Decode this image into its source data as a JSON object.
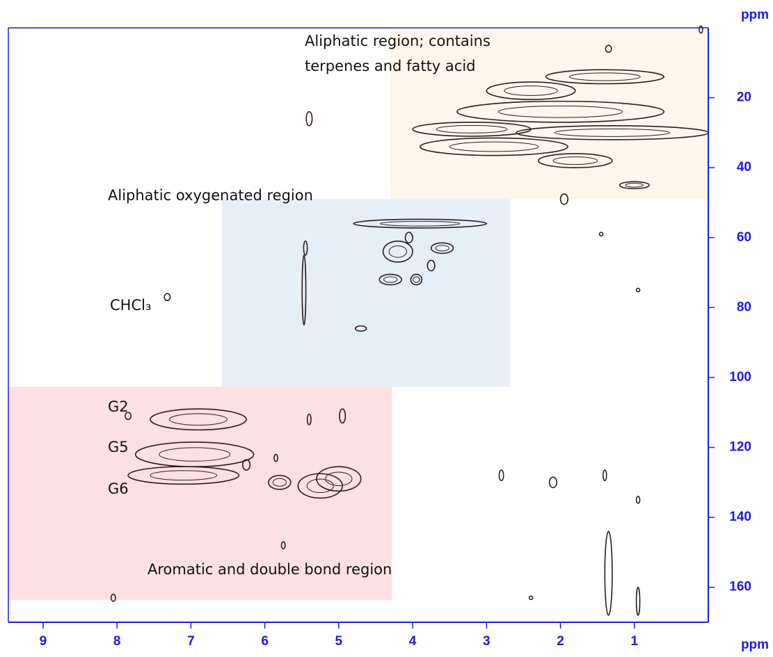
{
  "chart_data": {
    "type": "contour",
    "x_label": "ppm",
    "y_label": "ppm",
    "xlim": [
      9.47,
      0
    ],
    "ylim": [
      0,
      170
    ],
    "xticks": [
      9,
      8,
      7,
      6,
      5,
      4,
      3,
      2,
      1
    ],
    "yticks": [
      20,
      40,
      60,
      80,
      100,
      120,
      140,
      160
    ],
    "axis_color": "#1a1ae6",
    "peak_color": "#2b1d1d",
    "regions": [
      {
        "label": [
          "Aliphatic region; contains",
          "terpenes and fatty acid"
        ],
        "x_range": [
          4.3,
          0
        ],
        "y_range": [
          1,
          49
        ],
        "color": "#fdf6ea"
      },
      {
        "label": [
          "Aliphatic oxygenated region"
        ],
        "x_range": [
          6.58,
          2.68
        ],
        "y_range": [
          49,
          102.6
        ],
        "color": "#e6eef7"
      },
      {
        "label": [
          "Aromatic and double bond region"
        ],
        "x_range": [
          9.47,
          4.28
        ],
        "y_range": [
          102.6,
          163.6
        ],
        "color": "#fde0e3"
      }
    ],
    "annotations": [
      "CHCl₃",
      "G2",
      "G5",
      "G6"
    ],
    "peaks": {
      "x": [
        0.1,
        1.35,
        1.4,
        2.4,
        2.0,
        1.3,
        2.9,
        3.2,
        1.8,
        1.0,
        1.95,
        5.4,
        3.9,
        4.05,
        4.2,
        3.6,
        4.3,
        3.95,
        3.75,
        5.47,
        5.45,
        4.7,
        7.32,
        6.9,
        6.95,
        7.1,
        5.8,
        5.0,
        5.25,
        4.95,
        5.4,
        8.05,
        5.75,
        5.85,
        6.25,
        7.85,
        2.8,
        2.1,
        1.35,
        1.4,
        0.95,
        0.95,
        1.45,
        0.95,
        2.4
      ],
      "y": [
        0.5,
        6,
        14,
        18,
        24,
        30,
        34,
        29,
        38,
        45,
        49,
        26,
        56,
        60,
        64,
        63,
        72,
        72,
        68,
        75,
        63,
        86,
        77,
        112,
        122,
        128,
        130,
        129,
        131,
        111,
        112,
        163,
        148,
        123,
        125,
        111,
        128,
        130,
        156,
        128,
        135,
        164,
        59,
        75,
        163
      ],
      "x_width": [
        0.04,
        0.08,
        1.6,
        1.2,
        2.8,
        2.6,
        2.0,
        1.6,
        1.0,
        0.4,
        0.1,
        0.08,
        1.8,
        0.1,
        0.4,
        0.3,
        0.3,
        0.15,
        0.1,
        0.05,
        0.05,
        0.15,
        0.08,
        1.3,
        1.6,
        1.5,
        0.3,
        0.6,
        0.6,
        0.08,
        0.05,
        0.06,
        0.05,
        0.05,
        0.1,
        0.08,
        0.06,
        0.1,
        0.1,
        0.04,
        0.03,
        0.03,
        0.03,
        0.03,
        0.03
      ],
      "y_width": [
        2,
        2,
        4,
        5,
        6,
        4,
        5,
        4,
        4,
        2,
        3,
        4,
        2.5,
        3,
        6,
        3,
        3,
        3,
        3,
        20,
        4,
        1.5,
        2,
        6,
        7,
        5,
        4,
        7,
        7,
        4,
        3,
        2,
        2,
        2,
        3,
        2,
        3,
        3,
        24,
        3,
        2,
        8,
        1,
        1,
        1
      ]
    }
  }
}
